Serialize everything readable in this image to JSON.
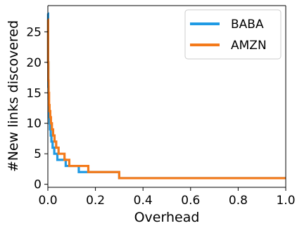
{
  "chart_data": {
    "type": "line",
    "title": "",
    "xlabel": "Overhead",
    "ylabel": "#New links discovered",
    "xlim": [
      0.0,
      1.0
    ],
    "ylim": [
      -0.5,
      29.3
    ],
    "x_ticks": [
      "0.0",
      "0.2",
      "0.4",
      "0.6",
      "0.8",
      "1.0"
    ],
    "y_ticks": [
      "0",
      "5",
      "10",
      "15",
      "20",
      "25"
    ],
    "grid": false,
    "legend_position": "top-right",
    "step": "post",
    "series": [
      {
        "name": "BABA",
        "color": "#1f9ae4",
        "x": [
          0.0,
          0.001,
          0.002,
          0.003,
          0.004,
          0.005,
          0.007,
          0.009,
          0.012,
          0.015,
          0.02,
          0.027,
          0.04,
          0.055,
          0.075,
          0.1,
          0.13,
          0.3,
          1.0
        ],
        "y": [
          28,
          20,
          16,
          14,
          12,
          11,
          10,
          9,
          8,
          7,
          6,
          5,
          4,
          4,
          3,
          3,
          2,
          1,
          1
        ]
      },
      {
        "name": "AMZN",
        "color": "#f47a1a",
        "x": [
          0.0,
          0.001,
          0.002,
          0.003,
          0.005,
          0.007,
          0.01,
          0.013,
          0.017,
          0.022,
          0.028,
          0.035,
          0.045,
          0.055,
          0.07,
          0.09,
          0.11,
          0.17,
          0.3,
          1.0
        ],
        "y": [
          27,
          20,
          17,
          15,
          13,
          12,
          11,
          10,
          9,
          8,
          7,
          6,
          5,
          5,
          4,
          3,
          3,
          2,
          1,
          1
        ]
      }
    ]
  }
}
